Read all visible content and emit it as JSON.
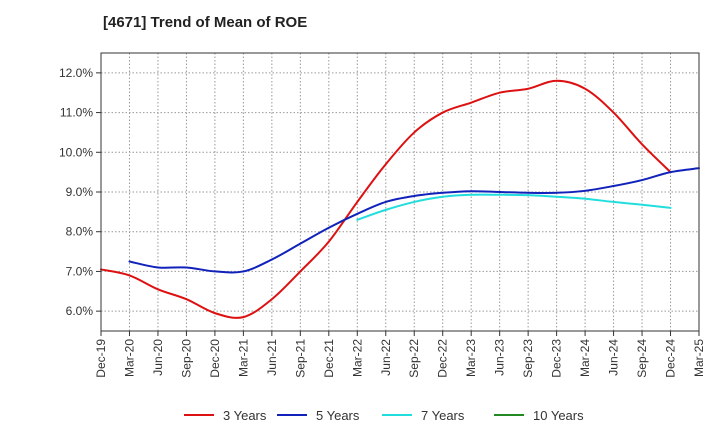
{
  "chart_data": {
    "type": "line",
    "title": "[4671]  Trend of Mean of ROE",
    "xlabel": "",
    "ylabel": "",
    "x_ticks": [
      "Dec-19",
      "Mar-20",
      "Jun-20",
      "Sep-20",
      "Dec-20",
      "Mar-21",
      "Jun-21",
      "Sep-21",
      "Dec-21",
      "Mar-22",
      "Jun-22",
      "Sep-22",
      "Dec-22",
      "Mar-23",
      "Jun-23",
      "Sep-23",
      "Dec-23",
      "Mar-24",
      "Jun-24",
      "Sep-24",
      "Dec-24",
      "Mar-25"
    ],
    "y_ticks": [
      6.0,
      7.0,
      8.0,
      9.0,
      10.0,
      11.0,
      12.0
    ],
    "y_tick_format": "%",
    "ylim": [
      5.5,
      12.5
    ],
    "grid": true,
    "legend_position": "bottom",
    "series": [
      {
        "name": "3 Years",
        "color": "#dd1111",
        "start_index": 0,
        "values": [
          7.05,
          6.9,
          6.55,
          6.3,
          5.95,
          5.85,
          6.3,
          7.0,
          7.75,
          8.75,
          9.7,
          10.5,
          11.0,
          11.25,
          11.5,
          11.6,
          11.8,
          11.6,
          11.0,
          10.2,
          9.5
        ]
      },
      {
        "name": "5 Years",
        "color": "#1122bb",
        "start_index": 1,
        "values": [
          7.25,
          7.1,
          7.1,
          7.0,
          7.0,
          7.3,
          7.7,
          8.1,
          8.45,
          8.75,
          8.9,
          8.98,
          9.02,
          9.0,
          8.98,
          8.98,
          9.03,
          9.15,
          9.3,
          9.5,
          9.6
        ]
      },
      {
        "name": "7 Years",
        "color": "#22dddd",
        "start_index": 9,
        "values": [
          8.3,
          8.55,
          8.75,
          8.88,
          8.93,
          8.93,
          8.92,
          8.88,
          8.83,
          8.75,
          8.68,
          8.6
        ]
      },
      {
        "name": "10 Years",
        "color": "#228822",
        "start_index": 0,
        "values": []
      }
    ]
  }
}
